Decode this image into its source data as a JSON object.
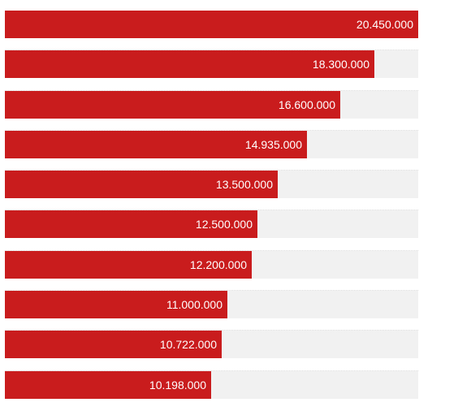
{
  "chart_data": {
    "type": "bar",
    "orientation": "horizontal",
    "values": [
      20450000,
      18300000,
      16600000,
      14935000,
      13500000,
      12500000,
      12200000,
      11000000,
      10722000,
      10198000
    ],
    "value_labels": [
      "20.450.000",
      "18.300.000",
      "16.600.000",
      "14.935.000",
      "13.500.000",
      "12.500.000",
      "12.200.000",
      "11.000.000",
      "10.722.000",
      "10.198.000"
    ],
    "xlim": [
      0,
      20450000
    ],
    "grid": false,
    "legend": "none"
  },
  "colors": {
    "bar": "#c91c1d",
    "track": "#f1f1f1",
    "label": "#ffffff"
  }
}
